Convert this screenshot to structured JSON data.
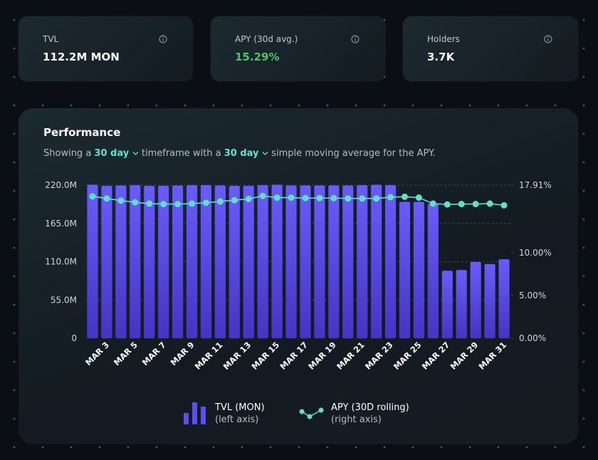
{
  "stats": [
    {
      "label": "TVL",
      "value": "112.2M MON"
    },
    {
      "label": "APY (30d avg.)",
      "value": "15.29%"
    },
    {
      "label": "Holders",
      "value": "3.7K"
    }
  ],
  "chart_data": {
    "type": "combo",
    "title": "Performance",
    "subtitle": {
      "prefix": "Showing a ",
      "timeframe": "30 day",
      "middle": " timeframe with a ",
      "average": "30 day",
      "suffix": " simple moving average for the APY."
    },
    "categories": [
      null,
      "MAR 3",
      null,
      "MAR 5",
      null,
      "MAR 7",
      null,
      "MAR 9",
      null,
      "MAR 11",
      null,
      "MAR 13",
      null,
      "MAR 15",
      null,
      "MAR 17",
      null,
      "MAR 19",
      null,
      "MAR 21",
      null,
      "MAR 23",
      null,
      "MAR 25",
      null,
      "MAR 27",
      null,
      "MAR 29",
      null,
      "MAR 31"
    ],
    "series": [
      {
        "name": "TVL (MON)",
        "note": "(left axis)",
        "type": "bar",
        "axis": "y",
        "color": "#5b4ff0",
        "values": [
          220500000,
          219000000,
          219500000,
          220000000,
          219000000,
          219000000,
          219500000,
          220000000,
          220000000,
          219500000,
          219000000,
          219000000,
          220000000,
          220500000,
          219500000,
          219500000,
          219500000,
          219500000,
          219500000,
          220000000,
          220500000,
          220000000,
          196000000,
          196000000,
          193500000,
          97000000,
          98000000,
          109500000,
          106500000,
          113500000
        ]
      },
      {
        "name": "APY (30D rolling)",
        "note": "(right axis)",
        "type": "line",
        "axis": "y2",
        "color": "#5fe0c8",
        "values": [
          16.6,
          16.35,
          16.1,
          15.9,
          15.75,
          15.7,
          15.7,
          15.75,
          15.85,
          16.0,
          16.15,
          16.3,
          16.65,
          16.45,
          16.45,
          16.4,
          16.4,
          16.4,
          16.35,
          16.35,
          16.35,
          16.5,
          16.55,
          16.45,
          15.75,
          15.65,
          15.7,
          15.7,
          15.75,
          15.55
        ]
      }
    ],
    "ylim": [
      0,
      220000000
    ],
    "yticks": [
      0,
      {
        "value": 55000000,
        "label": "55.0M"
      },
      {
        "value": 110000000,
        "label": "110.0M"
      },
      {
        "value": 165000000,
        "label": "165.0M"
      },
      {
        "value": 220000000,
        "label": "220.0M"
      }
    ],
    "y2lim": [
      0,
      17.91
    ],
    "y2ticks": [
      {
        "value": 0,
        "label": "0.00%"
      },
      {
        "value": 5,
        "label": "5.00%"
      },
      {
        "value": 10,
        "label": "10.00%"
      },
      {
        "value": 17.91,
        "label": "17.91%"
      }
    ],
    "grid": true
  }
}
